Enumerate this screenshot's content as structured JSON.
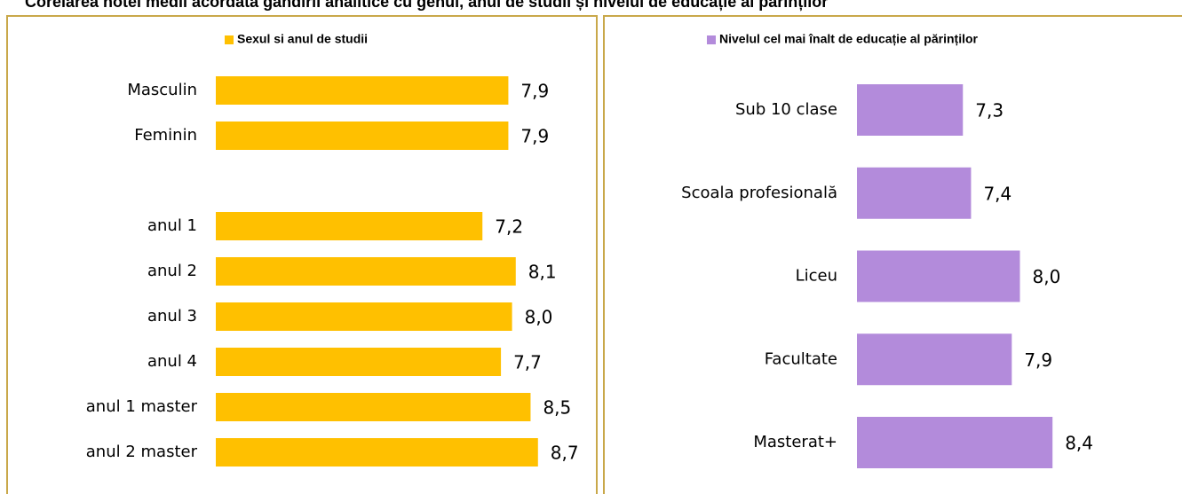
{
  "title": "Corelarea notei medii acordată gândirii analitice cu genul, anul de studii și nivelul de educație al părinților",
  "chart_data": [
    {
      "type": "bar",
      "orientation": "horizontal",
      "legend": "Sexul si anul de studii",
      "color": "#ffc000",
      "categories": [
        "Masculin",
        "Feminin",
        null,
        "anul 1",
        "anul 2",
        "anul 3",
        "anul 4",
        "anul 1 master",
        "anul 2 master"
      ],
      "values": [
        7.9,
        7.9,
        null,
        7.2,
        8.1,
        8.0,
        7.7,
        8.5,
        8.7
      ],
      "value_labels": [
        "7,9",
        "7,9",
        null,
        "7,2",
        "8,1",
        "8,0",
        "7,7",
        "8,5",
        "8,7"
      ],
      "xlim": [
        0,
        10
      ]
    },
    {
      "type": "bar",
      "orientation": "horizontal",
      "legend": "Nivelul cel mai înalt de educație al părinților",
      "color": "#b38bdb",
      "categories": [
        "Sub 10 clase",
        "Scoala profesională",
        "Liceu",
        "Facultate",
        "Masterat+"
      ],
      "values": [
        7.3,
        7.4,
        8.0,
        7.9,
        8.4
      ],
      "value_labels": [
        "7,3",
        "7,4",
        "8,0",
        "7,9",
        "8,4"
      ],
      "xlim": [
        6,
        10
      ]
    }
  ]
}
